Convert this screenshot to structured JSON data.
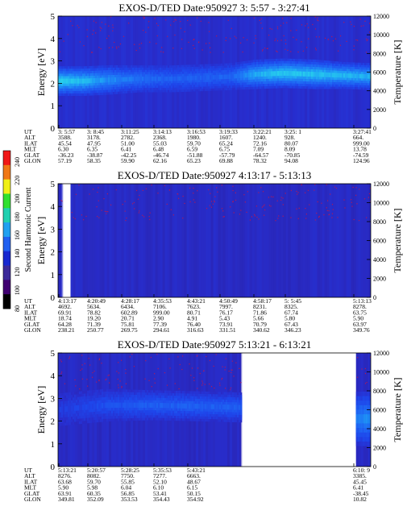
{
  "colorbar": {
    "label": "Second Harmonic Current",
    "ticks": [
      "240",
      "220",
      "200",
      "180",
      "160",
      "140",
      "120",
      "100",
      "80"
    ],
    "colors": [
      "#f01818",
      "#f07818",
      "#f0f018",
      "#30e030",
      "#20d0b0",
      "#20a0f0",
      "#2060f0",
      "#1828d0",
      "#3c2a9a",
      "#400070",
      "#000000"
    ]
  },
  "panels": [
    {
      "title": "EXOS-D/TED   Date:950927   3: 5:57 - 3:27:41",
      "ylabel": "Energy [eV]",
      "y2label": "Temperature [K]",
      "yticks": [
        "5",
        "4",
        "3",
        "2",
        "1",
        "0"
      ],
      "y2ticks": [
        "12000",
        "10000",
        "8000",
        "6000",
        "4000",
        "2000",
        "0"
      ],
      "rows": {
        "labels": [
          "UT",
          "ALT",
          "ILAT",
          "MLT",
          "GLAT",
          "GLON"
        ],
        "columns": [
          [
            "3: 5:57",
            "3588.",
            "45.54",
            "6.30",
            "-36.23",
            "57.19"
          ],
          [
            "3: 8:45",
            "3178.",
            "47.95",
            "6.35",
            "-38.87",
            "58.35"
          ],
          [
            "3:11:25",
            "2782.",
            "51.00",
            "6.41",
            "-42.25",
            "59.90"
          ],
          [
            "3:14:13",
            "2368.",
            "55.03",
            "6.48",
            "-46.74",
            "62.16"
          ],
          [
            "3:16:53",
            "1980.",
            "59.70",
            "6.59",
            "-51.88",
            "65.23"
          ],
          [
            "3:19:33",
            "1607.",
            "65.24",
            "6.75",
            "-57.79",
            "69.88"
          ],
          [
            "3:22:21",
            "1240.",
            "72.16",
            "7.09",
            "-64.57",
            "78.32"
          ],
          [
            "3:25: 1",
            "928.",
            "80.07",
            "8.09",
            "-70.85",
            "94.08"
          ],
          [
            "3:27:41",
            "664.",
            "999.00",
            "13.78",
            "-74.59",
            "124.96"
          ]
        ]
      },
      "chart_data": {
        "type": "heatmap",
        "x": [
          "3: 5:57",
          "3: 8:45",
          "3:11:25",
          "3:14:13",
          "3:16:53",
          "3:19:33",
          "3:22:21",
          "3:25: 1",
          "3:27:41"
        ],
        "ylim": [
          0,
          5
        ],
        "y2lim": [
          0,
          12000
        ],
        "data_coverage": [
          [
            0,
            1
          ]
        ],
        "band": [
          {
            "x": 0.0,
            "center": 2.1,
            "width": 0.55,
            "level": 0.78
          },
          {
            "x": 0.08,
            "center": 2.1,
            "width": 0.55,
            "level": 0.72
          },
          {
            "x": 0.16,
            "center": 2.15,
            "width": 0.55,
            "level": 0.62
          },
          {
            "x": 0.26,
            "center": 2.2,
            "width": 0.5,
            "level": 0.55
          },
          {
            "x": 0.36,
            "center": 2.2,
            "width": 0.5,
            "level": 0.5
          },
          {
            "x": 0.46,
            "center": 2.25,
            "width": 0.5,
            "level": 0.5
          },
          {
            "x": 0.55,
            "center": 2.3,
            "width": 0.5,
            "level": 0.52
          },
          {
            "x": 0.63,
            "center": 2.4,
            "width": 0.55,
            "level": 0.7
          },
          {
            "x": 0.72,
            "center": 2.45,
            "width": 0.55,
            "level": 0.76
          },
          {
            "x": 0.82,
            "center": 2.4,
            "width": 0.55,
            "level": 0.74
          },
          {
            "x": 0.91,
            "center": 2.35,
            "width": 0.5,
            "level": 0.72
          },
          {
            "x": 1.0,
            "center": 2.3,
            "width": 0.5,
            "level": 0.7
          }
        ],
        "background_level": 0.3
      }
    },
    {
      "title": "EXOS-D/TED   Date:950927   4:13:17 - 5:13:13",
      "ylabel": "Energy [eV]",
      "y2label": "Temperature [K]",
      "yticks": [
        "5",
        "4",
        "3",
        "2",
        "1",
        "0"
      ],
      "y2ticks": [
        "12000",
        "10000",
        "8000",
        "6000",
        "4000",
        "2000",
        "0"
      ],
      "rows": {
        "labels": [
          "UT",
          "ALT",
          "ILAT",
          "MLT",
          "GLAT",
          "GLON"
        ],
        "columns": [
          [
            "4:13:17",
            "4692.",
            "69.91",
            "18.74",
            "64.28",
            "238.21"
          ],
          [
            "4:20:49",
            "5634.",
            "78.82",
            "19.20",
            "71.39",
            "250.77"
          ],
          [
            "4:28:17",
            "6434.",
            "602.89",
            "20.71",
            "75.81",
            "269.75"
          ],
          [
            "4:35:53",
            "7106.",
            "999.00",
            "2.90",
            "77.39",
            "294.61"
          ],
          [
            "4:43:21",
            "7623.",
            "80.71",
            "4.91",
            "76.40",
            "316.63"
          ],
          [
            "4:50:49",
            "7997.",
            "76.17",
            "5.43",
            "73.91",
            "331.51"
          ],
          [
            "4:58:17",
            "8231.",
            "71.86",
            "5.66",
            "70.79",
            "340.62"
          ],
          [
            "5: 5:45",
            "8325.",
            "67.74",
            "5.80",
            "67.43",
            "346.23"
          ],
          [
            "5:13:13",
            "8278.",
            "63.75",
            "5.90",
            "63.97",
            "349.76"
          ]
        ]
      },
      "chart_data": {
        "type": "heatmap",
        "x": [
          "4:13:17",
          "4:20:49",
          "4:28:17",
          "4:35:53",
          "4:43:21",
          "4:50:49",
          "4:58:17",
          "5: 5:45",
          "5:13:13"
        ],
        "ylim": [
          0,
          5
        ],
        "y2lim": [
          0,
          12000
        ],
        "data_coverage": [
          [
            0,
            0.012
          ],
          [
            0.04,
            1
          ]
        ],
        "band": [],
        "background_level": 0.28
      }
    },
    {
      "title": "EXOS-D/TED   Date:950927   5:13:21 - 6:13:21",
      "ylabel": "Energy [eV]",
      "y2label": "Temperature [K]",
      "yticks": [
        "5",
        "4",
        "3",
        "2",
        "1",
        "0"
      ],
      "y2ticks": [
        "12000",
        "10000",
        "8000",
        "6000",
        "4000",
        "2000",
        "0"
      ],
      "rows": {
        "labels": [
          "UT",
          "ALT",
          "ILAT",
          "MLT",
          "GLAT",
          "GLON"
        ],
        "columns": [
          [
            "5:13:21",
            "8276.",
            "63.68",
            "5.90",
            "63.91",
            "349.81"
          ],
          [
            "5:20:57",
            "8082.",
            "59.70",
            "5.98",
            "60.35",
            "352.09"
          ],
          [
            "5:28:25",
            "7750.",
            "55.85",
            "6.04",
            "56.85",
            "353.53"
          ],
          [
            "5:35:53",
            "7277.",
            "52.10",
            "6.10",
            "53.41",
            "354.43"
          ],
          [
            "5:43:21",
            "6663.",
            "48.67",
            "6.15",
            "50.15",
            "354.92"
          ],
          [
            "",
            "",
            "",
            "",
            "",
            ""
          ],
          [
            "",
            "",
            "",
            "",
            "",
            ""
          ],
          [
            "",
            "",
            "",
            "",
            "",
            ""
          ],
          [
            "6:10: 9",
            "3385.",
            "45.45",
            "6.41",
            "-38.45",
            "10.82"
          ]
        ]
      },
      "chart_data": {
        "type": "heatmap",
        "x": [
          "5:13:21",
          "5:20:57",
          "5:28:25",
          "5:35:53",
          "5:43:21",
          "6:10: 9"
        ],
        "ylim": [
          0,
          5
        ],
        "y2lim": [
          0,
          12000
        ],
        "data_coverage": [
          [
            0,
            0.585
          ],
          [
            0.953,
            1
          ]
        ],
        "band": [
          {
            "x": 0.0,
            "center": 2.5,
            "width": 0.6,
            "level": 0.36
          },
          {
            "x": 0.15,
            "center": 2.7,
            "width": 0.6,
            "level": 0.44
          },
          {
            "x": 0.3,
            "center": 2.7,
            "width": 0.55,
            "level": 0.5
          },
          {
            "x": 0.45,
            "center": 2.65,
            "width": 0.55,
            "level": 0.5
          },
          {
            "x": 0.585,
            "center": 2.6,
            "width": 0.55,
            "level": 0.5
          },
          {
            "x": 0.953,
            "center": 2.1,
            "width": 1.0,
            "level": 0.62
          },
          {
            "x": 1.0,
            "center": 2.1,
            "width": 1.0,
            "level": 0.64
          }
        ],
        "background_level": 0.28
      }
    }
  ]
}
